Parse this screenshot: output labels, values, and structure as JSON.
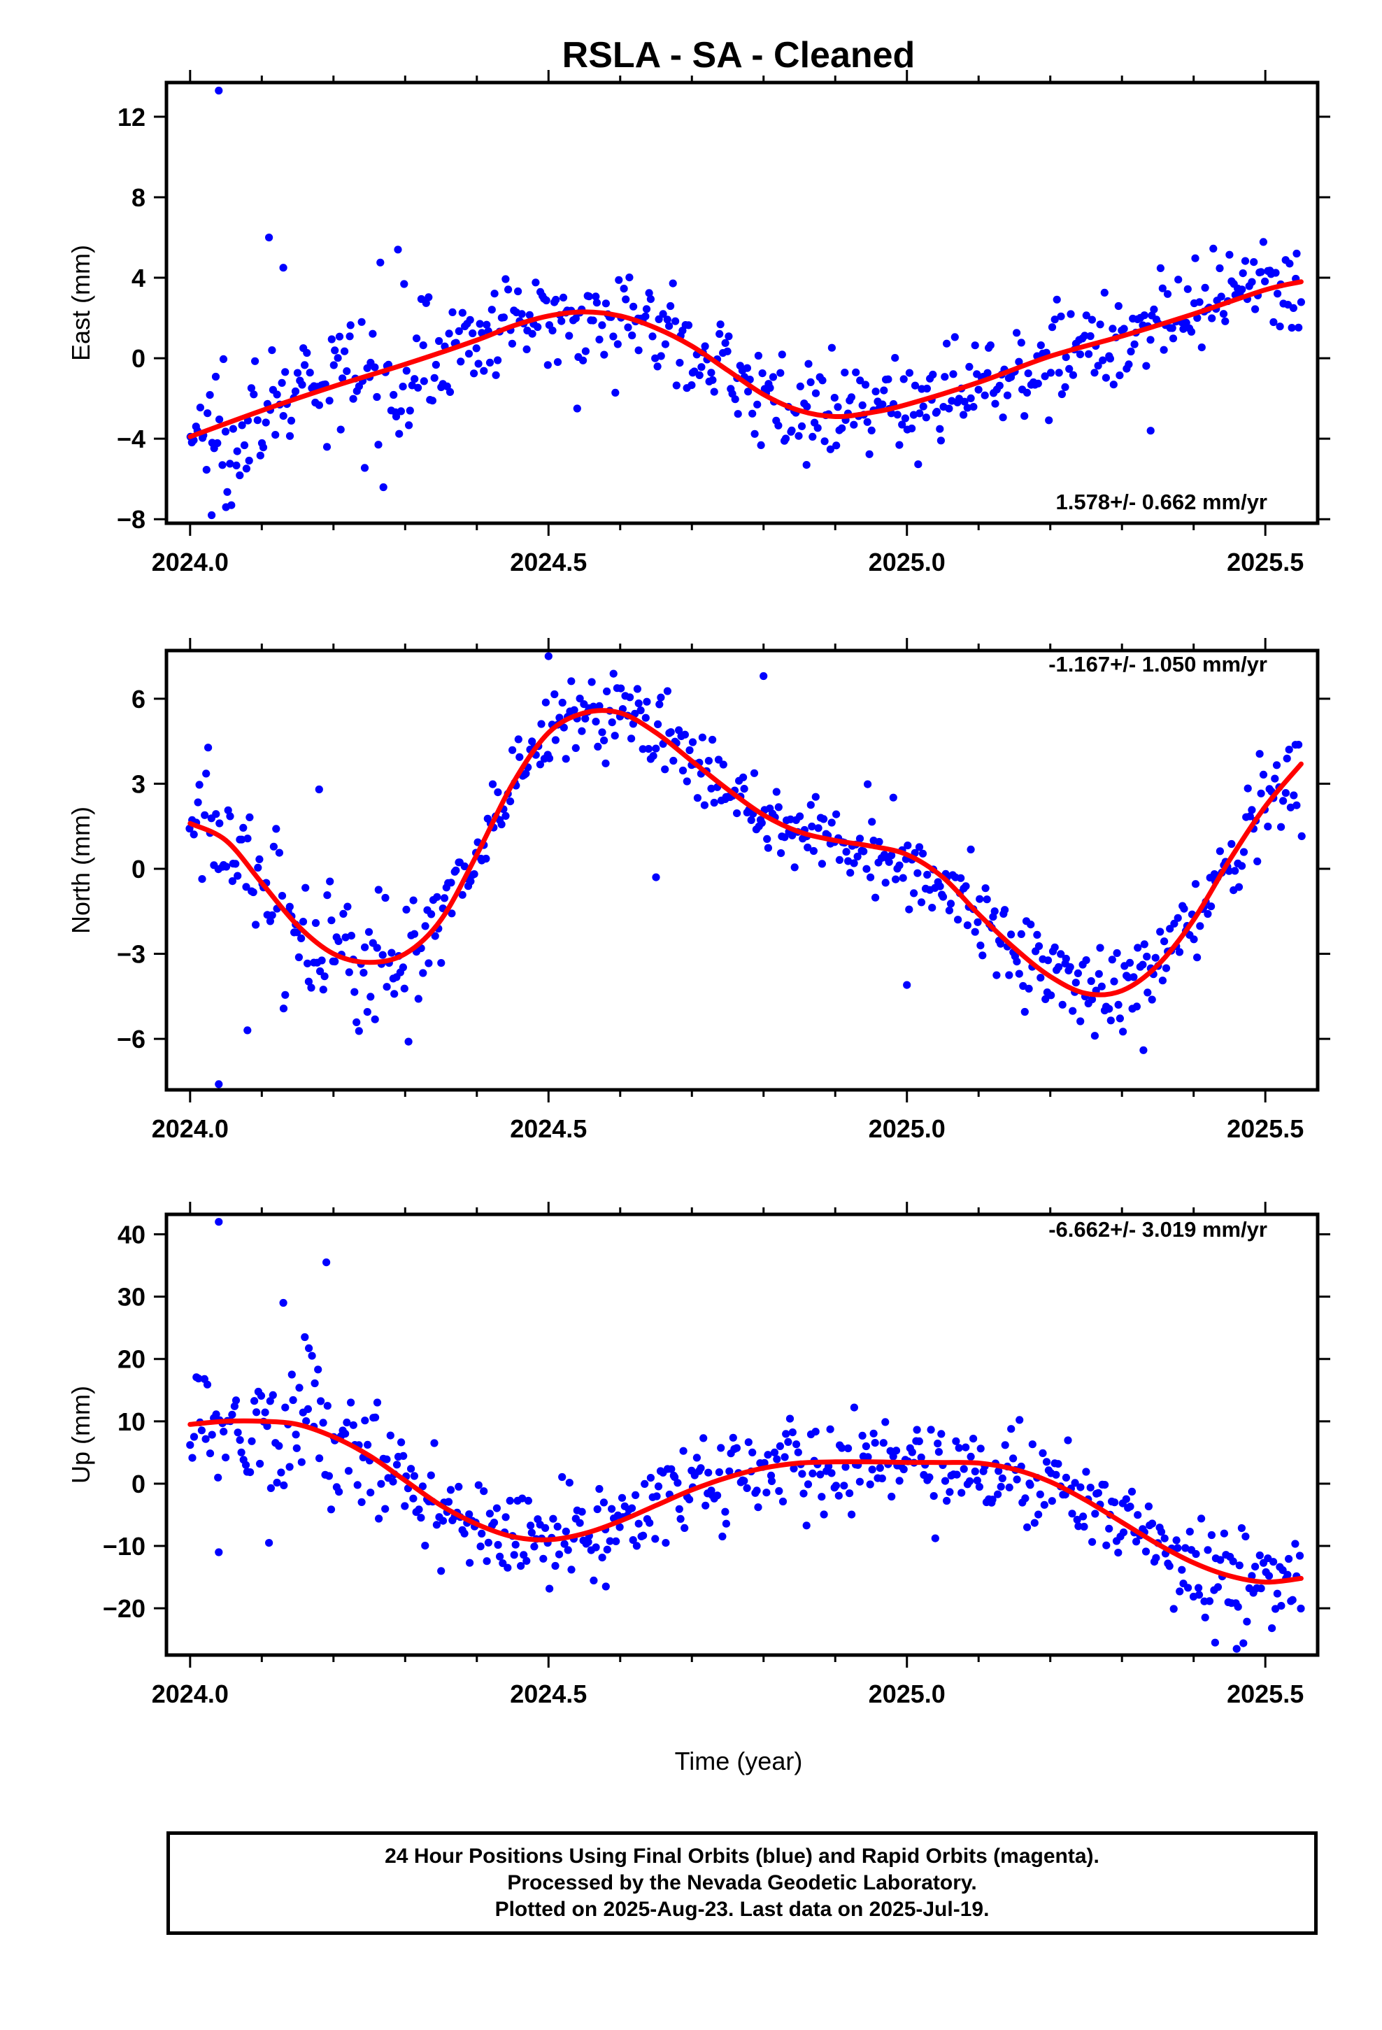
{
  "title": "RSLA  - SA - Cleaned",
  "xlabel": "Time (year)",
  "colors": {
    "points": "#0000ff",
    "fit": "#ff0000",
    "frame": "#000000"
  },
  "chart_data": [
    {
      "type": "scatter",
      "ylabel": "East (mm)",
      "rate_text": "1.578+/- 0.662 mm/yr",
      "xlim": [
        2023.967,
        2025.573
      ],
      "ylim": [
        -8.2,
        13.7
      ],
      "xticks": [
        2024.0,
        2024.5,
        2025.0,
        2025.5
      ],
      "xtick_labels": [
        "2024.0",
        "2024.5",
        "2025.0",
        "2025.5"
      ],
      "yticks": [
        -8,
        -4,
        0,
        4,
        8,
        12
      ],
      "ytick_labels": [
        "−8",
        "−4",
        "0",
        "4",
        "8",
        "12"
      ],
      "series": [
        {
          "label": "fit",
          "x": [
            2024.0,
            2024.1,
            2024.2,
            2024.3,
            2024.4,
            2024.45,
            2024.5,
            2024.55,
            2024.6,
            2024.65,
            2024.7,
            2024.75,
            2024.8,
            2024.85,
            2024.9,
            2024.95,
            2025.0,
            2025.1,
            2025.2,
            2025.3,
            2025.4,
            2025.5,
            2025.55
          ],
          "y": [
            -3.9,
            -2.6,
            -1.4,
            -0.3,
            0.9,
            1.6,
            2.1,
            2.3,
            2.1,
            1.5,
            0.6,
            -0.6,
            -1.8,
            -2.6,
            -2.9,
            -2.7,
            -2.3,
            -1.2,
            0.1,
            1.1,
            2.2,
            3.4,
            3.8
          ]
        }
      ],
      "points": {
        "generated": true,
        "x_range": [
          2024.0,
          2025.55
        ],
        "outliers": [
          [
            2024.04,
            13.3
          ],
          [
            2024.11,
            6.0
          ],
          [
            2024.13,
            4.5
          ],
          [
            2024.05,
            -7.4
          ],
          [
            2024.03,
            -7.8
          ],
          [
            2024.54,
            -2.5
          ],
          [
            2024.86,
            -5.3
          ],
          [
            2025.34,
            -3.6
          ],
          [
            2024.29,
            5.4
          ]
        ]
      }
    },
    {
      "type": "scatter",
      "ylabel": "North (mm)",
      "rate_text": "-1.167+/- 1.050 mm/yr",
      "xlim": [
        2023.967,
        2025.573
      ],
      "ylim": [
        -7.8,
        7.7
      ],
      "xticks": [
        2024.0,
        2024.5,
        2025.0,
        2025.5
      ],
      "xtick_labels": [
        "2024.0",
        "2024.5",
        "2025.0",
        "2025.5"
      ],
      "yticks": [
        -6,
        -3,
        0,
        3,
        6
      ],
      "ytick_labels": [
        "−6",
        "−3",
        "0",
        "3",
        "6"
      ],
      "series": [
        {
          "label": "fit",
          "x": [
            2024.0,
            2024.05,
            2024.1,
            2024.15,
            2024.2,
            2024.25,
            2024.3,
            2024.35,
            2024.4,
            2024.45,
            2024.5,
            2024.55,
            2024.6,
            2024.65,
            2024.7,
            2024.75,
            2024.8,
            2024.85,
            2024.9,
            2024.95,
            2025.0,
            2025.05,
            2025.1,
            2025.15,
            2025.2,
            2025.25,
            2025.3,
            2025.35,
            2025.4,
            2025.45,
            2025.5,
            2025.55
          ],
          "y": [
            1.6,
            1.0,
            -0.5,
            -2.0,
            -3.0,
            -3.3,
            -3.0,
            -1.8,
            0.5,
            3.0,
            4.8,
            5.5,
            5.5,
            4.8,
            3.8,
            2.8,
            1.9,
            1.3,
            1.0,
            0.8,
            0.5,
            -0.3,
            -1.6,
            -2.8,
            -3.8,
            -4.4,
            -4.3,
            -3.4,
            -1.8,
            0.3,
            2.2,
            3.7
          ]
        }
      ],
      "points": {
        "generated": true,
        "x_range": [
          2024.0,
          2025.55
        ],
        "outliers": [
          [
            2024.04,
            -7.6
          ],
          [
            2024.18,
            2.8
          ],
          [
            2024.5,
            7.5
          ],
          [
            2024.8,
            6.8
          ],
          [
            2025.0,
            -4.1
          ],
          [
            2024.08,
            -5.7
          ],
          [
            2025.33,
            -6.4
          ],
          [
            2024.65,
            -0.3
          ]
        ]
      }
    },
    {
      "type": "scatter",
      "ylabel": "Up (mm)",
      "rate_text": "-6.662+/- 3.019 mm/yr",
      "xlim": [
        2023.967,
        2025.573
      ],
      "ylim": [
        -27.5,
        43.2
      ],
      "xticks": [
        2024.0,
        2024.5,
        2025.0,
        2025.5
      ],
      "xtick_labels": [
        "2024.0",
        "2024.5",
        "2025.0",
        "2025.5"
      ],
      "yticks": [
        -20,
        -10,
        0,
        10,
        20,
        30,
        40
      ],
      "ytick_labels": [
        "−20",
        "−10",
        "0",
        "10",
        "20",
        "30",
        "40"
      ],
      "series": [
        {
          "label": "fit",
          "x": [
            2024.0,
            2024.05,
            2024.1,
            2024.15,
            2024.2,
            2024.25,
            2024.3,
            2024.35,
            2024.4,
            2024.45,
            2024.5,
            2024.55,
            2024.6,
            2024.65,
            2024.7,
            2024.75,
            2024.8,
            2024.85,
            2024.9,
            2024.95,
            2025.0,
            2025.05,
            2025.1,
            2025.15,
            2025.2,
            2025.25,
            2025.3,
            2025.35,
            2025.4,
            2025.45,
            2025.5,
            2025.55
          ],
          "y": [
            9.5,
            10.0,
            10.0,
            9.5,
            7.5,
            4.5,
            0.5,
            -3.5,
            -6.5,
            -8.5,
            -9.0,
            -8.0,
            -6.0,
            -3.5,
            -1.0,
            1.0,
            2.5,
            3.3,
            3.5,
            3.5,
            3.4,
            3.4,
            3.3,
            2.3,
            0.3,
            -2.7,
            -6.2,
            -9.7,
            -12.7,
            -14.8,
            -15.8,
            -15.2
          ]
        }
      ],
      "points": {
        "generated": true,
        "x_range": [
          2024.0,
          2025.55
        ],
        "outliers": [
          [
            2024.04,
            42.0
          ],
          [
            2024.13,
            29.0
          ],
          [
            2024.19,
            35.5
          ],
          [
            2024.16,
            23.5
          ],
          [
            2024.11,
            -9.5
          ],
          [
            2024.04,
            -11.0
          ],
          [
            2025.43,
            -25.5
          ],
          [
            2025.46,
            -26.5
          ],
          [
            2024.58,
            -16.5
          ]
        ]
      }
    }
  ],
  "footer": {
    "line1": "24 Hour Positions Using Final Orbits (blue) and Rapid Orbits (magenta).",
    "line2": "Processed by the Nevada Geodetic Laboratory.",
    "line3": "Plotted on 2025-Aug-23. Last data on 2025-Jul-19."
  }
}
